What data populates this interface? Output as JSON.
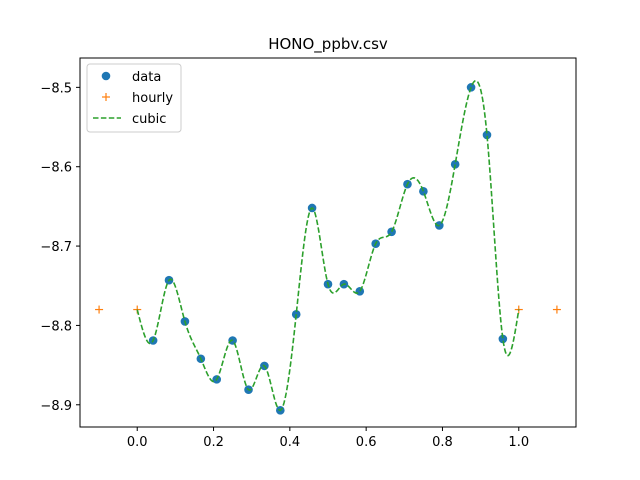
{
  "chart_data": {
    "type": "line",
    "title": "HONO_ppbv.csv",
    "xlabel": "",
    "ylabel": "",
    "xlim": [
      -0.15,
      1.15
    ],
    "ylim": [
      -8.928,
      -8.463
    ],
    "xticks": [
      0.0,
      0.2,
      0.4,
      0.6,
      0.8,
      1.0
    ],
    "xtick_labels": [
      "0.0",
      "0.2",
      "0.4",
      "0.6",
      "0.8",
      "1.0"
    ],
    "yticks": [
      -8.9,
      -8.8,
      -8.7,
      -8.6,
      -8.5
    ],
    "ytick_labels": [
      "−8.9",
      "−8.8",
      "−8.7",
      "−8.6",
      "−8.5"
    ],
    "grid": false,
    "legend_position": "top-left",
    "series": [
      {
        "name": "data",
        "style": "markers-circle",
        "color": "#1f77b4",
        "x": [
          0.0417,
          0.0833,
          0.125,
          0.1667,
          0.2083,
          0.25,
          0.2917,
          0.3333,
          0.375,
          0.4167,
          0.4583,
          0.5,
          0.5417,
          0.5833,
          0.625,
          0.6667,
          0.7083,
          0.75,
          0.7917,
          0.8333,
          0.875,
          0.9167,
          0.9583
        ],
        "y": [
          -8.819,
          -8.743,
          -8.795,
          -8.842,
          -8.868,
          -8.819,
          -8.881,
          -8.851,
          -8.907,
          -8.786,
          -8.652,
          -8.748,
          -8.748,
          -8.757,
          -8.697,
          -8.682,
          -8.622,
          -8.631,
          -8.674,
          -8.597,
          -8.5,
          -8.56,
          -8.817
        ]
      },
      {
        "name": "hourly",
        "style": "markers-plus",
        "color": "#ff7f0e",
        "x": [
          -0.1,
          0.0,
          1.0,
          1.1
        ],
        "y": [
          -8.78,
          -8.78,
          -8.78,
          -8.78
        ]
      },
      {
        "name": "cubic",
        "style": "dashed-line",
        "color": "#2ca02c",
        "x": [
          0.0,
          0.0417,
          0.0833,
          0.125,
          0.1667,
          0.2083,
          0.25,
          0.2917,
          0.3333,
          0.375,
          0.4167,
          0.4583,
          0.5,
          0.5417,
          0.5833,
          0.625,
          0.6667,
          0.7083,
          0.75,
          0.7917,
          0.8333,
          0.875,
          0.9167,
          0.9583,
          1.0
        ],
        "y": [
          -8.78,
          -8.819,
          -8.743,
          -8.795,
          -8.842,
          -8.868,
          -8.819,
          -8.881,
          -8.851,
          -8.907,
          -8.786,
          -8.652,
          -8.748,
          -8.748,
          -8.757,
          -8.697,
          -8.682,
          -8.622,
          -8.631,
          -8.674,
          -8.597,
          -8.5,
          -8.56,
          -8.817,
          -8.78
        ]
      }
    ]
  }
}
